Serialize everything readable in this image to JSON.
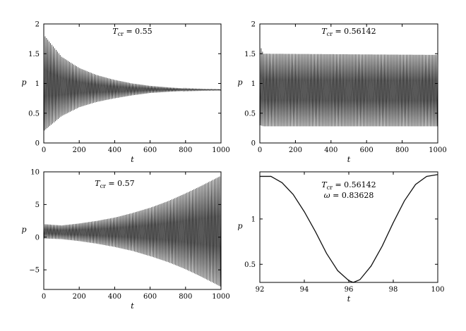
{
  "chart_data": [
    {
      "type": "line",
      "annotation": {
        "symbol": "T",
        "subscript": "cr",
        "rest": " = 0.55"
      },
      "annotation2": null,
      "xlabel": "t",
      "ylabel": "p",
      "xlim": [
        0,
        1000
      ],
      "ylim": [
        0,
        2
      ],
      "xticks": [
        "0",
        "200",
        "400",
        "600",
        "800",
        "1000"
      ],
      "yticks": [
        "0",
        "0.5",
        "1",
        "1.5",
        "2"
      ],
      "grid": false,
      "series": [
        {
          "values_description": "",
          "envelope_upper": [
            [
              0,
              1.82
            ],
            [
              100,
              1.45
            ],
            [
              200,
              1.26
            ],
            [
              300,
              1.14
            ],
            [
              400,
              1.06
            ],
            [
              500,
              1.0
            ],
            [
              600,
              0.96
            ],
            [
              700,
              0.935
            ],
            [
              800,
              0.915
            ],
            [
              900,
              0.905
            ],
            [
              1000,
              0.9
            ]
          ],
          "envelope_lower": [
            [
              0,
              0.2
            ],
            [
              100,
              0.45
            ],
            [
              200,
              0.6
            ],
            [
              300,
              0.69
            ],
            [
              400,
              0.75
            ],
            [
              500,
              0.8
            ],
            [
              600,
              0.84
            ],
            [
              700,
              0.86
            ],
            [
              800,
              0.875
            ],
            [
              900,
              0.882
            ],
            [
              1000,
              0.885
            ]
          ]
        }
      ]
    },
    {
      "type": "line",
      "annotation": {
        "symbol": "T",
        "subscript": "cr",
        "rest": " = 0.56142"
      },
      "annotation2": null,
      "xlabel": "t",
      "ylabel": "p",
      "xlim": [
        0,
        1000
      ],
      "ylim": [
        0,
        2
      ],
      "xticks": [
        "0",
        "200",
        "400",
        "600",
        "800",
        "1000"
      ],
      "yticks": [
        "0",
        "0.5",
        "1",
        "1.5",
        "2"
      ],
      "grid": false,
      "series": [
        {
          "values_description": "",
          "envelope_upper": [
            [
              0,
              1.65
            ],
            [
              20,
              1.5
            ],
            [
              1000,
              1.48
            ]
          ],
          "envelope_lower": [
            [
              0,
              0.3
            ],
            [
              20,
              0.28
            ],
            [
              1000,
              0.28
            ]
          ]
        }
      ]
    },
    {
      "type": "line",
      "annotation": {
        "symbol": "T",
        "subscript": "cr",
        "rest": " = 0.57"
      },
      "annotation2": null,
      "xlabel": "t",
      "ylabel": "p",
      "xlim": [
        0,
        1000
      ],
      "ylim": [
        -8,
        10
      ],
      "xticks": [
        "0",
        "200",
        "400",
        "600",
        "800",
        "1000"
      ],
      "yticks": [
        "-5",
        "0",
        "5",
        "10"
      ],
      "ytick_values": [
        -5,
        0,
        5,
        10
      ],
      "grid": false,
      "series": [
        {
          "values_description": "",
          "envelope_upper": [
            [
              0,
              2.0
            ],
            [
              100,
              1.8
            ],
            [
              200,
              2.1
            ],
            [
              300,
              2.5
            ],
            [
              400,
              3.0
            ],
            [
              500,
              3.7
            ],
            [
              600,
              4.5
            ],
            [
              700,
              5.5
            ],
            [
              800,
              6.7
            ],
            [
              900,
              8.0
            ],
            [
              1000,
              9.4
            ]
          ],
          "envelope_lower": [
            [
              0,
              -0.2
            ],
            [
              100,
              -0.3
            ],
            [
              200,
              -0.6
            ],
            [
              300,
              -1.0
            ],
            [
              400,
              -1.5
            ],
            [
              500,
              -2.1
            ],
            [
              600,
              -2.9
            ],
            [
              700,
              -3.8
            ],
            [
              800,
              -4.9
            ],
            [
              900,
              -6.2
            ],
            [
              1000,
              -7.6
            ]
          ]
        }
      ]
    },
    {
      "type": "line",
      "annotation": {
        "symbol": "T",
        "subscript": "cr",
        "rest": " = 0.56142"
      },
      "annotation2": {
        "symbol": "ω",
        "rest": " = 0.83628"
      },
      "xlabel": "t",
      "ylabel": "p",
      "xlim": [
        92,
        100
      ],
      "ylim": [
        0.3,
        1.52
      ],
      "xticks": [
        "92",
        "94",
        "96",
        "98",
        "100"
      ],
      "yticks": [
        "0.5",
        "1"
      ],
      "ytick_values": [
        0.5,
        1
      ],
      "grid": false,
      "series": [
        {
          "x": [
            92,
            92.5,
            93,
            93.5,
            94,
            94.5,
            95,
            95.5,
            96,
            96.2,
            96.5,
            97,
            97.5,
            98,
            98.5,
            99,
            99.5,
            100
          ],
          "y": [
            1.47,
            1.47,
            1.4,
            1.27,
            1.08,
            0.86,
            0.62,
            0.43,
            0.32,
            0.3,
            0.33,
            0.48,
            0.7,
            0.96,
            1.2,
            1.38,
            1.47,
            1.49
          ]
        }
      ]
    }
  ]
}
